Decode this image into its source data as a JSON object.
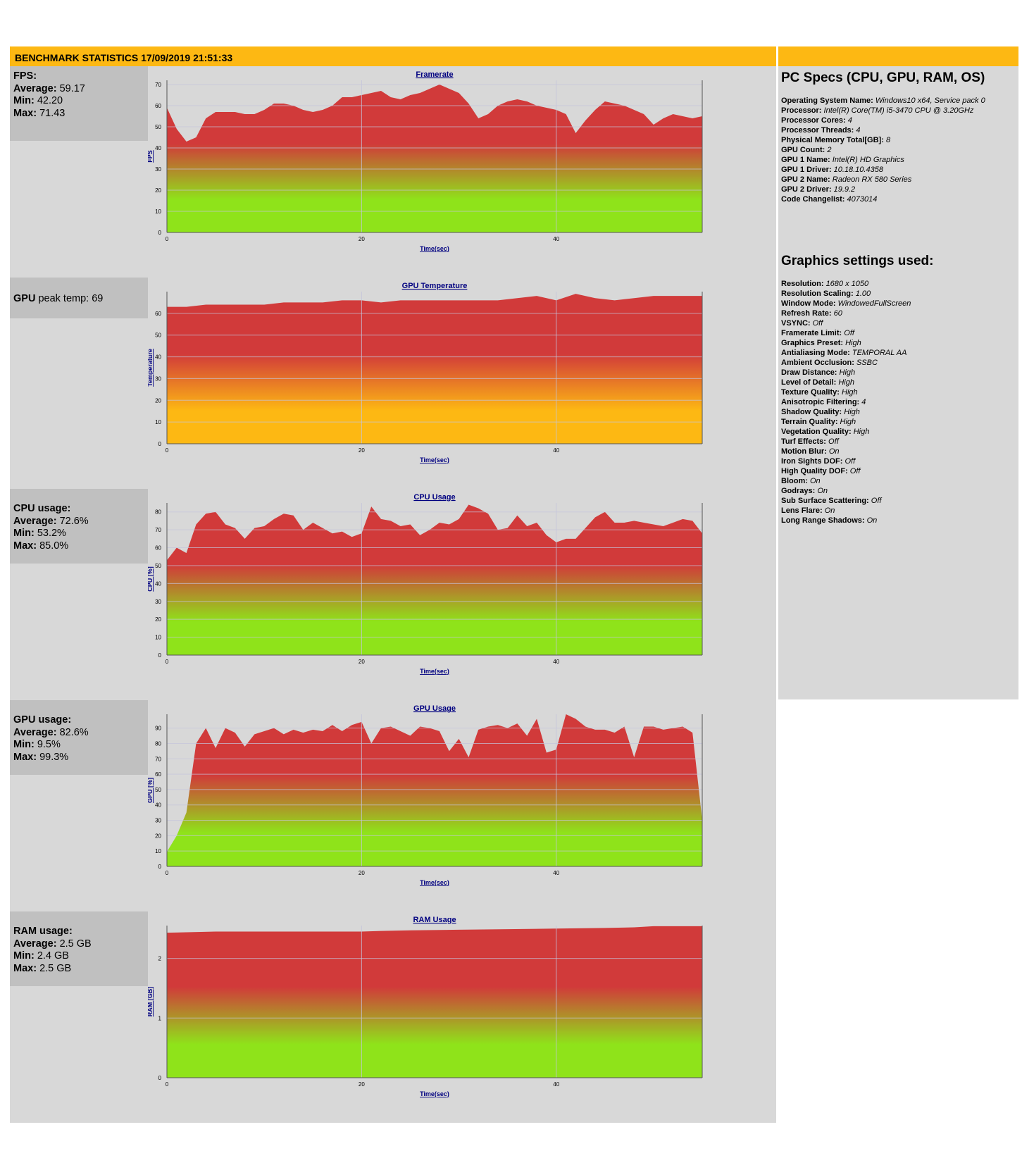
{
  "header": {
    "title": "BENCHMARK STATISTICS 17/09/2019 21:51:33"
  },
  "stats": {
    "fps": {
      "label": "FPS:",
      "avg_label": "Average:",
      "avg": "59.17",
      "min_label": "Min:",
      "min": "42.20",
      "max_label": "Max:",
      "max": "71.43"
    },
    "gpu_temp": {
      "label": "GPU",
      "text": "peak temp: 69"
    },
    "cpu": {
      "label": "CPU usage:",
      "avg_label": "Average:",
      "avg": "72.6%",
      "min_label": "Min:",
      "min": "53.2%",
      "max_label": "Max:",
      "max": "85.0%"
    },
    "gpu": {
      "label": "GPU usage:",
      "avg_label": "Average:",
      "avg": "82.6%",
      "min_label": "Min:",
      "min": "9.5%",
      "max_label": "Max:",
      "max": "99.3%"
    },
    "ram": {
      "label": "RAM usage:",
      "avg_label": "Average:",
      "avg": "2.5 GB",
      "min_label": "Min:",
      "min": "2.4 GB",
      "max_label": "Max:",
      "max": "2.5 GB"
    }
  },
  "colors": {
    "orange": "#fdb813",
    "red": "#d13a3a",
    "green": "#8fe31a",
    "panel": "#d8d8d8",
    "box": "#c0c0c0",
    "grid": "#c4c4dc",
    "axis_title": "#000080"
  },
  "chart_data": [
    {
      "type": "area",
      "title": "Framerate",
      "xlabel": "Time(sec)",
      "ylabel": "FPS",
      "xlim": [
        0,
        55
      ],
      "ylim": [
        0,
        72
      ],
      "xticks": [
        "0",
        "20",
        "40"
      ],
      "yticks": [
        "0",
        "10",
        "20",
        "30",
        "40",
        "50",
        "60",
        "70"
      ],
      "gradient": "red-to-green",
      "x": [
        0,
        1,
        2,
        3,
        4,
        5,
        6,
        7,
        8,
        9,
        10,
        11,
        12,
        13,
        14,
        15,
        16,
        17,
        18,
        19,
        20,
        21,
        22,
        23,
        24,
        25,
        26,
        27,
        28,
        29,
        30,
        31,
        32,
        33,
        34,
        35,
        36,
        37,
        38,
        39,
        40,
        41,
        42,
        43,
        44,
        45,
        46,
        47,
        48,
        49,
        50,
        51,
        52,
        53,
        54,
        55
      ],
      "y": [
        59,
        49,
        43,
        45,
        54,
        57,
        57,
        57,
        56,
        56,
        58,
        61,
        61,
        60,
        58,
        57,
        58,
        60,
        64,
        64,
        65,
        66,
        67,
        64,
        63,
        65,
        66,
        68,
        70,
        68,
        66,
        61,
        54,
        56,
        60,
        62,
        63,
        62,
        60,
        59,
        58,
        56,
        47,
        53,
        58,
        62,
        61,
        60,
        58,
        56,
        51,
        54,
        56,
        55,
        54,
        55
      ]
    },
    {
      "type": "area",
      "title": "GPU Temperature",
      "xlabel": "Time(sec)",
      "ylabel": "Temperature",
      "xlim": [
        0,
        55
      ],
      "ylim": [
        0,
        70
      ],
      "xticks": [
        "0",
        "20",
        "40"
      ],
      "yticks": [
        "0",
        "10",
        "20",
        "30",
        "40",
        "50",
        "60"
      ],
      "gradient": "red-to-orange",
      "x": [
        0,
        2,
        4,
        6,
        8,
        10,
        12,
        14,
        16,
        18,
        20,
        22,
        24,
        26,
        28,
        30,
        32,
        34,
        36,
        38,
        40,
        42,
        44,
        46,
        48,
        50,
        52,
        54,
        55
      ],
      "y": [
        63,
        63,
        64,
        64,
        64,
        64,
        65,
        65,
        65,
        66,
        66,
        65,
        66,
        66,
        66,
        66,
        66,
        66,
        67,
        68,
        66,
        69,
        67,
        66,
        67,
        68,
        68,
        68,
        68
      ]
    },
    {
      "type": "area",
      "title": "CPU Usage",
      "xlabel": "Time(sec)",
      "ylabel": "CPU [%]",
      "xlim": [
        0,
        55
      ],
      "ylim": [
        0,
        85
      ],
      "xticks": [
        "0",
        "20",
        "40"
      ],
      "yticks": [
        "0",
        "10",
        "20",
        "30",
        "40",
        "50",
        "60",
        "70",
        "80"
      ],
      "gradient": "red-to-green",
      "x": [
        0,
        1,
        2,
        3,
        4,
        5,
        6,
        7,
        8,
        9,
        10,
        11,
        12,
        13,
        14,
        15,
        16,
        17,
        18,
        19,
        20,
        21,
        22,
        23,
        24,
        25,
        26,
        27,
        28,
        29,
        30,
        31,
        32,
        33,
        34,
        35,
        36,
        37,
        38,
        39,
        40,
        41,
        42,
        43,
        44,
        45,
        46,
        47,
        48,
        49,
        50,
        51,
        52,
        53,
        54,
        55
      ],
      "y": [
        53,
        60,
        57,
        73,
        79,
        80,
        73,
        71,
        65,
        71,
        72,
        76,
        79,
        78,
        70,
        74,
        71,
        68,
        69,
        66,
        68,
        83,
        76,
        75,
        72,
        73,
        67,
        70,
        74,
        73,
        76,
        84,
        82,
        79,
        70,
        71,
        78,
        72,
        74,
        67,
        63,
        65,
        65,
        71,
        77,
        80,
        74,
        74,
        75,
        74,
        73,
        72,
        74,
        76,
        75,
        68
      ]
    },
    {
      "type": "area",
      "title": "GPU Usage",
      "xlabel": "Time(sec)",
      "ylabel": "GPU [%]",
      "xlim": [
        0,
        55
      ],
      "ylim": [
        0,
        99
      ],
      "xticks": [
        "0",
        "20",
        "40"
      ],
      "yticks": [
        "0",
        "10",
        "20",
        "30",
        "40",
        "50",
        "60",
        "70",
        "80",
        "90"
      ],
      "gradient": "red-to-green",
      "x": [
        0,
        1,
        2,
        3,
        4,
        5,
        6,
        7,
        8,
        9,
        10,
        11,
        12,
        13,
        14,
        15,
        16,
        17,
        18,
        19,
        20,
        21,
        22,
        23,
        24,
        25,
        26,
        27,
        28,
        29,
        30,
        31,
        32,
        33,
        34,
        35,
        36,
        37,
        38,
        39,
        40,
        41,
        42,
        43,
        44,
        45,
        46,
        47,
        48,
        49,
        50,
        51,
        52,
        53,
        54,
        55
      ],
      "y": [
        9.5,
        20,
        35,
        80,
        90,
        77,
        90,
        87,
        78,
        86,
        88,
        90,
        86,
        89,
        87,
        89,
        88,
        92,
        88,
        92,
        94,
        80,
        90,
        91,
        88,
        85,
        91,
        90,
        88,
        75,
        83,
        71,
        89,
        91,
        92,
        90,
        93,
        85,
        96,
        74,
        76,
        99,
        96,
        91,
        89,
        89,
        87,
        91,
        71,
        91,
        91,
        89,
        90,
        91,
        87,
        30
      ]
    },
    {
      "type": "area",
      "title": "RAM Usage",
      "xlabel": "Time(sec)",
      "ylabel": "RAM [GB]",
      "xlim": [
        0,
        55
      ],
      "ylim": [
        0,
        2.55
      ],
      "xticks": [
        "0",
        "20",
        "40"
      ],
      "yticks": [
        "0",
        "1",
        "2"
      ],
      "gradient": "red-to-green",
      "x": [
        0,
        5,
        10,
        15,
        20,
        22,
        25,
        30,
        35,
        40,
        45,
        48,
        50,
        55
      ],
      "y": [
        2.43,
        2.45,
        2.45,
        2.45,
        2.45,
        2.46,
        2.47,
        2.48,
        2.49,
        2.5,
        2.51,
        2.52,
        2.54,
        2.54
      ]
    }
  ],
  "pc_specs": {
    "title": "PC Specs (CPU, GPU, RAM, OS)",
    "rows": [
      {
        "label": "Operating System Name:",
        "value": "Windows10 x64, Service pack 0"
      },
      {
        "label": "Processor:",
        "value": "Intel(R) Core(TM) i5-3470 CPU @ 3.20GHz"
      },
      {
        "label": "Processor Cores:",
        "value": "4"
      },
      {
        "label": "Processor Threads:",
        "value": "4"
      },
      {
        "label": "Physical Memory Total[GB]:",
        "value": "8"
      },
      {
        "label": "GPU Count:",
        "value": "2"
      },
      {
        "label": "GPU 1 Name:",
        "value": "Intel(R) HD Graphics"
      },
      {
        "label": "GPU 1 Driver:",
        "value": "10.18.10.4358"
      },
      {
        "label": "GPU 2 Name:",
        "value": "Radeon RX 580 Series"
      },
      {
        "label": "GPU 2 Driver:",
        "value": "19.9.2"
      },
      {
        "label": "Code Changelist:",
        "value": "4073014"
      }
    ]
  },
  "graphics_settings": {
    "title": "Graphics settings used:",
    "rows": [
      {
        "label": "Resolution:",
        "value": "1680 x 1050"
      },
      {
        "label": "Resolution Scaling:",
        "value": "1.00"
      },
      {
        "label": "Window Mode:",
        "value": "WindowedFullScreen"
      },
      {
        "label": "Refresh Rate:",
        "value": "60"
      },
      {
        "label": "VSYNC:",
        "value": "Off"
      },
      {
        "label": "Framerate Limit:",
        "value": "Off"
      },
      {
        "label": "Graphics Preset:",
        "value": "High"
      },
      {
        "label": "Antialiasing Mode:",
        "value": "TEMPORAL AA"
      },
      {
        "label": "Ambient Occlusion:",
        "value": "SSBC"
      },
      {
        "label": "Draw Distance:",
        "value": "High"
      },
      {
        "label": "Level of Detail:",
        "value": "High"
      },
      {
        "label": "Texture Quality:",
        "value": "High"
      },
      {
        "label": "Anisotropic Filtering:",
        "value": "4"
      },
      {
        "label": "Shadow Quality:",
        "value": "High"
      },
      {
        "label": "Terrain Quality:",
        "value": "High"
      },
      {
        "label": "Vegetation Quality:",
        "value": "High"
      },
      {
        "label": "Turf Effects:",
        "value": "Off"
      },
      {
        "label": "Motion Blur:",
        "value": "On"
      },
      {
        "label": "Iron Sights DOF:",
        "value": "Off"
      },
      {
        "label": "High Quality DOF:",
        "value": "Off"
      },
      {
        "label": "Bloom:",
        "value": "On"
      },
      {
        "label": "Godrays:",
        "value": "On"
      },
      {
        "label": "Sub Surface Scattering:",
        "value": "Off"
      },
      {
        "label": "Lens Flare:",
        "value": "On"
      },
      {
        "label": "Long Range Shadows:",
        "value": "On"
      }
    ]
  }
}
